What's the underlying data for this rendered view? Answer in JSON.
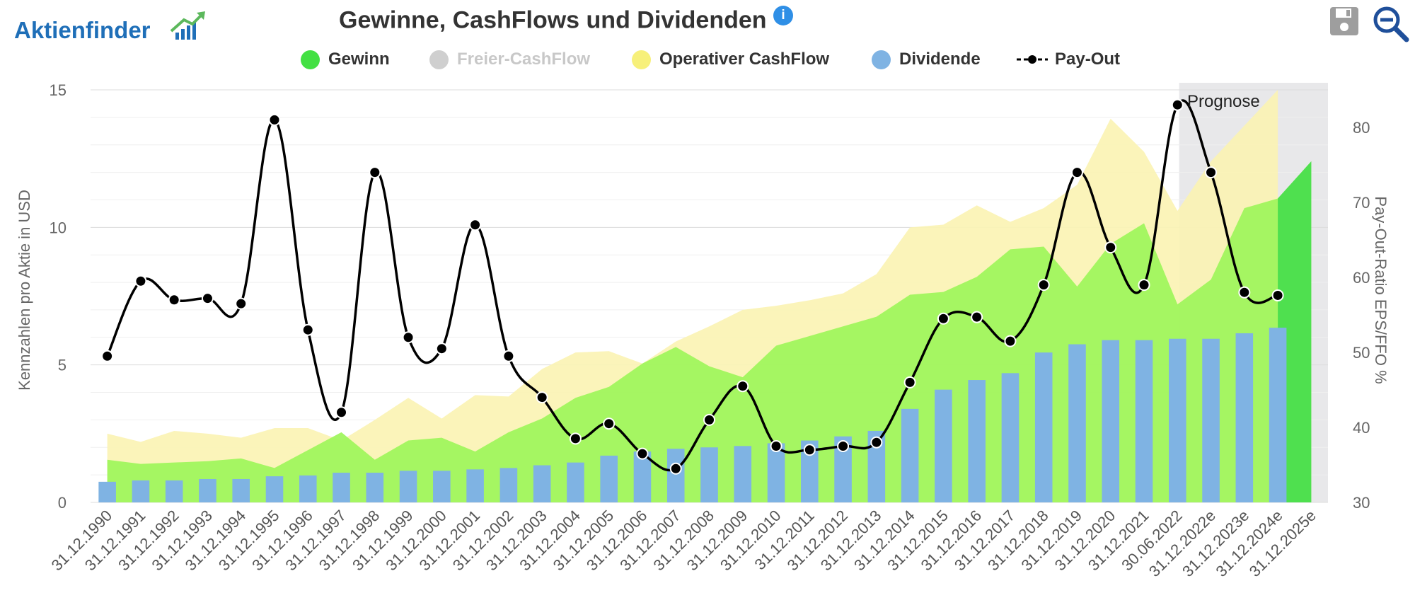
{
  "brand": {
    "name": "Aktienfinder"
  },
  "title": "Gewinne, CashFlows und Dividenden",
  "info_icon_glyph": "i",
  "toolbar": {
    "save_icon": "save-icon",
    "zoom_icon": "zoom-icon"
  },
  "legend": {
    "gewinn": "Gewinn",
    "fcf": "Freier-CashFlow",
    "ocf": "Operativer CashFlow",
    "dividende": "Dividende",
    "payout": "Pay-Out"
  },
  "colors": {
    "gewinn": "#4fe04f",
    "gewinn_area": "#9df55a",
    "fcf": "#cccccc",
    "ocf": "#f7f08a",
    "ocf_area": "#fbf3b3",
    "dividende": "#7fb3e3",
    "payout": "#000000",
    "prognose_band": "#e8e8ea"
  },
  "chart_data": {
    "type": "combo",
    "title": "Gewinne, CashFlows und Dividenden",
    "ylabel": "Kennzahlen pro Aktie in USD",
    "ylabel_right": "Pay-Out-Ratio EPS/FFO %",
    "ylim": [
      0,
      15
    ],
    "yticks": [
      0,
      5,
      10,
      15
    ],
    "ylim_right": [
      30,
      85
    ],
    "yticks_right": [
      30,
      40,
      50,
      60,
      70,
      80
    ],
    "annotation": "Prognose",
    "categories": [
      "31.12.1990",
      "31.12.1991",
      "31.12.1992",
      "31.12.1993",
      "31.12.1994",
      "31.12.1995",
      "31.12.1996",
      "31.12.1997",
      "31.12.1998",
      "31.12.1999",
      "31.12.2000",
      "31.12.2001",
      "31.12.2002",
      "31.12.2003",
      "31.12.2004",
      "31.12.2005",
      "31.12.2006",
      "31.12.2007",
      "31.12.2008",
      "31.12.2009",
      "31.12.2010",
      "31.12.2011",
      "31.12.2012",
      "31.12.2013",
      "31.12.2014",
      "31.12.2015",
      "31.12.2016",
      "31.12.2017",
      "31.12.2018",
      "31.12.2019",
      "31.12.2020",
      "31.12.2021",
      "30.06.2022",
      "31.12.2022e",
      "31.12.2023e",
      "31.12.2024e",
      "31.12.2025e"
    ],
    "series": [
      {
        "name": "Gewinn",
        "kind": "area",
        "values": [
          1.55,
          1.4,
          1.45,
          1.5,
          1.6,
          1.25,
          1.9,
          2.55,
          1.55,
          2.25,
          2.35,
          1.85,
          2.55,
          3.05,
          3.8,
          4.2,
          5.05,
          5.65,
          4.95,
          4.55,
          5.7,
          6.05,
          6.4,
          6.75,
          7.55,
          7.65,
          8.2,
          9.2,
          9.3,
          7.85,
          9.4,
          10.15,
          7.2,
          8.1,
          10.7,
          11.05,
          12.4
        ]
      },
      {
        "name": "Operativer CashFlow",
        "kind": "area",
        "values": [
          2.5,
          2.2,
          2.6,
          2.5,
          2.35,
          2.7,
          2.7,
          2.25,
          3.0,
          3.8,
          3.05,
          3.9,
          3.85,
          4.85,
          5.45,
          5.5,
          5.05,
          5.85,
          6.4,
          7.0,
          7.15,
          7.35,
          7.6,
          8.3,
          10.0,
          10.1,
          10.8,
          10.2,
          10.7,
          11.55,
          13.95,
          12.75,
          10.6,
          12.4,
          13.7,
          15.0,
          null
        ]
      },
      {
        "name": "Dividende",
        "kind": "bar",
        "values": [
          0.75,
          0.8,
          0.8,
          0.85,
          0.85,
          0.95,
          0.98,
          1.08,
          1.08,
          1.15,
          1.15,
          1.2,
          1.25,
          1.35,
          1.45,
          1.7,
          1.85,
          1.95,
          2.0,
          2.05,
          2.15,
          2.25,
          2.4,
          2.6,
          3.4,
          4.1,
          4.45,
          4.7,
          5.45,
          5.75,
          5.9,
          5.9,
          5.95,
          5.95,
          6.15,
          6.35,
          null
        ]
      },
      {
        "name": "Pay-Out",
        "kind": "line",
        "axis": "right",
        "values": [
          49.5,
          59.5,
          57,
          57.2,
          56.5,
          81,
          53,
          42,
          74,
          52,
          50.5,
          67,
          49.5,
          44,
          38.5,
          40.5,
          36.5,
          34.5,
          41,
          45.5,
          37.5,
          37,
          37.5,
          38,
          46,
          54.5,
          54.7,
          51.5,
          59,
          74,
          64,
          59,
          83,
          74,
          58,
          57.6,
          null
        ]
      }
    ]
  }
}
